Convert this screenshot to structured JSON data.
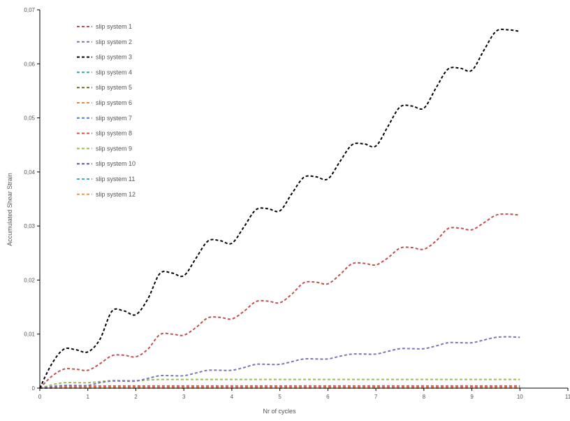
{
  "chart_data": {
    "type": "line",
    "title": "",
    "xlabel": "Nr of cycles",
    "ylabel": "Accumulated Shear Strain",
    "xlim": [
      0,
      11
    ],
    "ylim": [
      0,
      0.07
    ],
    "x_ticks": [
      0,
      1,
      2,
      3,
      4,
      5,
      6,
      7,
      8,
      9,
      10,
      11
    ],
    "x_tick_labels": [
      "0",
      "1",
      "2",
      "3",
      "4",
      "5",
      "6",
      "7",
      "8",
      "9",
      "10",
      "11"
    ],
    "y_ticks": [
      0,
      0.01,
      0.02,
      0.03,
      0.04,
      0.05,
      0.06,
      0.07
    ],
    "y_tick_labels": [
      "0",
      "0,01",
      "0,02",
      "0,03",
      "0,04",
      "0,05",
      "0,06",
      "0,07"
    ],
    "grid": false,
    "legend_position": "top-left",
    "line_style": "dashed",
    "x": [
      0,
      0.25,
      0.5,
      0.75,
      1,
      1.25,
      1.5,
      1.75,
      2,
      2.25,
      2.5,
      2.75,
      3,
      3.25,
      3.5,
      3.75,
      4,
      4.25,
      4.5,
      4.75,
      5,
      5.25,
      5.5,
      5.75,
      6,
      6.25,
      6.5,
      6.75,
      7,
      7.25,
      7.5,
      7.75,
      8,
      8.25,
      8.5,
      8.75,
      9,
      9.25,
      9.5,
      9.75,
      10
    ],
    "series": [
      {
        "name": "slip system 1",
        "color": "#c0504d",
        "values": [
          0,
          0.0022,
          0.0035,
          0.0035,
          0.0033,
          0.0045,
          0.006,
          0.0061,
          0.0058,
          0.0072,
          0.0099,
          0.01,
          0.0098,
          0.0112,
          0.013,
          0.0131,
          0.0128,
          0.0142,
          0.016,
          0.0161,
          0.0158,
          0.0174,
          0.0195,
          0.0196,
          0.0193,
          0.021,
          0.023,
          0.0231,
          0.0228,
          0.0241,
          0.0259,
          0.026,
          0.0257,
          0.0272,
          0.0295,
          0.0296,
          0.0293,
          0.0306,
          0.032,
          0.0322,
          0.032
        ]
      },
      {
        "name": "slip system 2",
        "color": "#7a74b8",
        "values": [
          0,
          0.0003,
          0.0005,
          0.0005,
          0.0005,
          0.001,
          0.0013,
          0.0013,
          0.0013,
          0.0018,
          0.0023,
          0.0023,
          0.0023,
          0.0028,
          0.0033,
          0.0033,
          0.0033,
          0.0038,
          0.0044,
          0.0044,
          0.0044,
          0.0049,
          0.0054,
          0.0054,
          0.0054,
          0.0059,
          0.0063,
          0.0063,
          0.0063,
          0.0068,
          0.0073,
          0.0073,
          0.0073,
          0.0078,
          0.0084,
          0.0084,
          0.0084,
          0.0089,
          0.0094,
          0.0095,
          0.0094
        ]
      },
      {
        "name": "slip system 3",
        "color": "#000000",
        "values": [
          0,
          0.0045,
          0.0072,
          0.0071,
          0.0067,
          0.009,
          0.0142,
          0.0143,
          0.0136,
          0.0165,
          0.0212,
          0.0213,
          0.0208,
          0.024,
          0.0272,
          0.0273,
          0.0268,
          0.0298,
          0.033,
          0.0332,
          0.0328,
          0.036,
          0.039,
          0.0391,
          0.0387,
          0.0419,
          0.045,
          0.0452,
          0.0448,
          0.0484,
          0.052,
          0.0522,
          0.0518,
          0.0555,
          0.059,
          0.0592,
          0.0588,
          0.0625,
          0.066,
          0.0663,
          0.066
        ]
      },
      {
        "name": "slip system 4",
        "color": "#31a5b8",
        "values": [
          0,
          0,
          0,
          0,
          0,
          0,
          0,
          0,
          0,
          0,
          0,
          0,
          0,
          0,
          0,
          0,
          0,
          0,
          0,
          0,
          0,
          0,
          0,
          0,
          0,
          0,
          0,
          0,
          0,
          0,
          0,
          0,
          0,
          0,
          0,
          0,
          0,
          0,
          0,
          0,
          0
        ]
      },
      {
        "name": "slip system 5",
        "color": "#6b6d21",
        "values": [
          0,
          5e-05,
          0.0001,
          0.0001,
          0.0001,
          0.0001,
          0.0001,
          0.0001,
          0.0001,
          0.0001,
          0.0001,
          0.0001,
          0.0001,
          0.0001,
          0.0001,
          0.0001,
          0.0001,
          0.0001,
          0.0001,
          0.0001,
          0.0001,
          0.0001,
          0.0001,
          0.0001,
          0.0001,
          0.0001,
          0.0001,
          0.0001,
          0.0001,
          0.0001,
          0.0001,
          0.0001,
          0.0001,
          0.0001,
          0.0001,
          0.0001,
          0.0001,
          0.0001,
          0.0001,
          0.0001,
          0.0001
        ]
      },
      {
        "name": "slip system 6",
        "color": "#e8883a",
        "values": [
          0,
          0.0001,
          0.0002,
          0.0002,
          0.0002,
          0.0002,
          0.0002,
          0.0002,
          0.0002,
          0.0002,
          0.0002,
          0.0002,
          0.0002,
          0.0002,
          0.0002,
          0.0002,
          0.0002,
          0.0002,
          0.0002,
          0.0002,
          0.0002,
          0.0002,
          0.0002,
          0.0002,
          0.0002,
          0.0002,
          0.0002,
          0.0002,
          0.0002,
          0.0002,
          0.0002,
          0.0002,
          0.0002,
          0.0002,
          0.0002,
          0.0002,
          0.0002,
          0.0002,
          0.0002,
          0.0002,
          0.0002
        ]
      },
      {
        "name": "slip system 7",
        "color": "#4f81bd",
        "values": [
          0,
          0,
          0,
          0,
          0,
          0,
          0,
          0,
          0,
          0,
          0,
          0,
          0,
          0,
          0,
          0,
          0,
          0,
          0,
          0,
          0,
          0,
          0,
          0,
          0,
          0,
          0,
          0,
          0,
          0,
          0,
          0,
          0,
          0,
          0,
          0,
          0,
          0,
          0,
          0,
          0
        ]
      },
      {
        "name": "slip system 8",
        "color": "#d9534f",
        "values": [
          0,
          0.0002,
          0.0004,
          0.0004,
          0.0004,
          0.0004,
          0.0004,
          0.0004,
          0.0004,
          0.0004,
          0.0004,
          0.0004,
          0.0004,
          0.0004,
          0.0004,
          0.0004,
          0.0004,
          0.0004,
          0.0004,
          0.0004,
          0.0004,
          0.0004,
          0.0004,
          0.0004,
          0.0004,
          0.0004,
          0.0004,
          0.0004,
          0.0004,
          0.0004,
          0.0004,
          0.0004,
          0.0004,
          0.0004,
          0.0004,
          0.0004,
          0.0004,
          0.0004,
          0.0004,
          0.0004,
          0.0004
        ]
      },
      {
        "name": "slip system 9",
        "color": "#9bbb59",
        "values": [
          0,
          0.0006,
          0.001,
          0.001,
          0.001,
          0.0012,
          0.0014,
          0.0014,
          0.0014,
          0.0015,
          0.0016,
          0.0016,
          0.0016,
          0.0016,
          0.0016,
          0.0016,
          0.0016,
          0.0016,
          0.0016,
          0.0016,
          0.0016,
          0.0016,
          0.0016,
          0.0016,
          0.0016,
          0.0016,
          0.0016,
          0.0016,
          0.0016,
          0.0016,
          0.0016,
          0.0016,
          0.0016,
          0.0016,
          0.0016,
          0.0016,
          0.0016,
          0.0016,
          0.0016,
          0.0016,
          0.0016
        ]
      },
      {
        "name": "slip system 10",
        "color": "#5b57a6",
        "values": [
          0,
          0,
          0,
          0,
          0,
          0,
          0,
          0,
          0,
          0,
          0,
          0,
          0,
          0,
          0,
          0,
          0,
          0,
          0,
          0,
          0,
          0,
          0,
          0,
          0,
          0,
          0,
          0,
          0,
          0,
          0,
          0,
          0,
          0,
          0,
          0,
          0,
          0,
          0,
          0,
          0
        ]
      },
      {
        "name": "slip system 11",
        "color": "#4bacc6",
        "values": [
          0,
          0,
          0,
          0,
          0,
          0,
          0,
          0,
          0,
          0,
          0,
          0,
          0,
          0,
          0,
          0,
          0,
          0,
          0,
          0,
          0,
          0,
          0,
          0,
          0,
          0,
          0,
          0,
          0,
          0,
          0,
          0,
          0,
          0,
          0,
          0,
          0,
          0,
          0,
          0,
          0
        ]
      },
      {
        "name": "slip system 12",
        "color": "#f79646",
        "values": [
          0,
          0,
          0,
          0,
          0,
          0,
          0,
          0,
          0,
          0,
          0,
          0,
          0,
          0,
          0,
          0,
          0,
          0,
          0,
          0,
          0,
          0,
          0,
          0,
          0,
          0,
          0,
          0,
          0,
          0,
          0,
          0,
          0,
          0,
          0,
          0,
          0,
          0,
          0,
          0,
          0
        ]
      }
    ]
  }
}
